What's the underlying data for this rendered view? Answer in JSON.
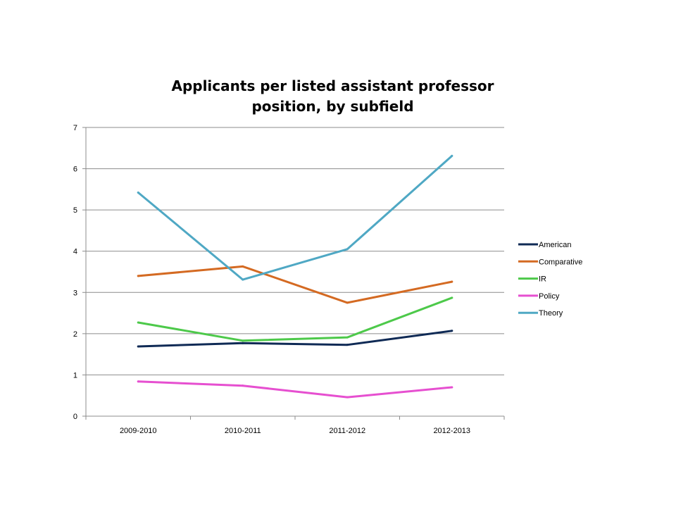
{
  "chart_data": {
    "type": "line",
    "title": "Applicants per listed assistant professor position, by subfield",
    "xlabel": "",
    "ylabel": "",
    "categories": [
      "2009-2010",
      "2010-2011",
      "2011-2012",
      "2012-2013"
    ],
    "ylim": [
      0,
      7
    ],
    "yticks": [
      0,
      1,
      2,
      3,
      4,
      5,
      6,
      7
    ],
    "grid": true,
    "legend_position": "right",
    "series": [
      {
        "name": "American",
        "color": "#0f2a55",
        "values": [
          1.69,
          1.77,
          1.73,
          2.07
        ]
      },
      {
        "name": "Comparative",
        "color": "#d46a22",
        "values": [
          3.4,
          3.63,
          2.75,
          3.26
        ]
      },
      {
        "name": "IR",
        "color": "#4dc94a",
        "values": [
          2.27,
          1.83,
          1.91,
          2.87
        ]
      },
      {
        "name": "Policy",
        "color": "#e64fd0",
        "values": [
          0.84,
          0.74,
          0.46,
          0.7
        ]
      },
      {
        "name": "Theory",
        "color": "#4fa8c4",
        "values": [
          5.42,
          3.31,
          4.05,
          6.31
        ]
      }
    ]
  }
}
